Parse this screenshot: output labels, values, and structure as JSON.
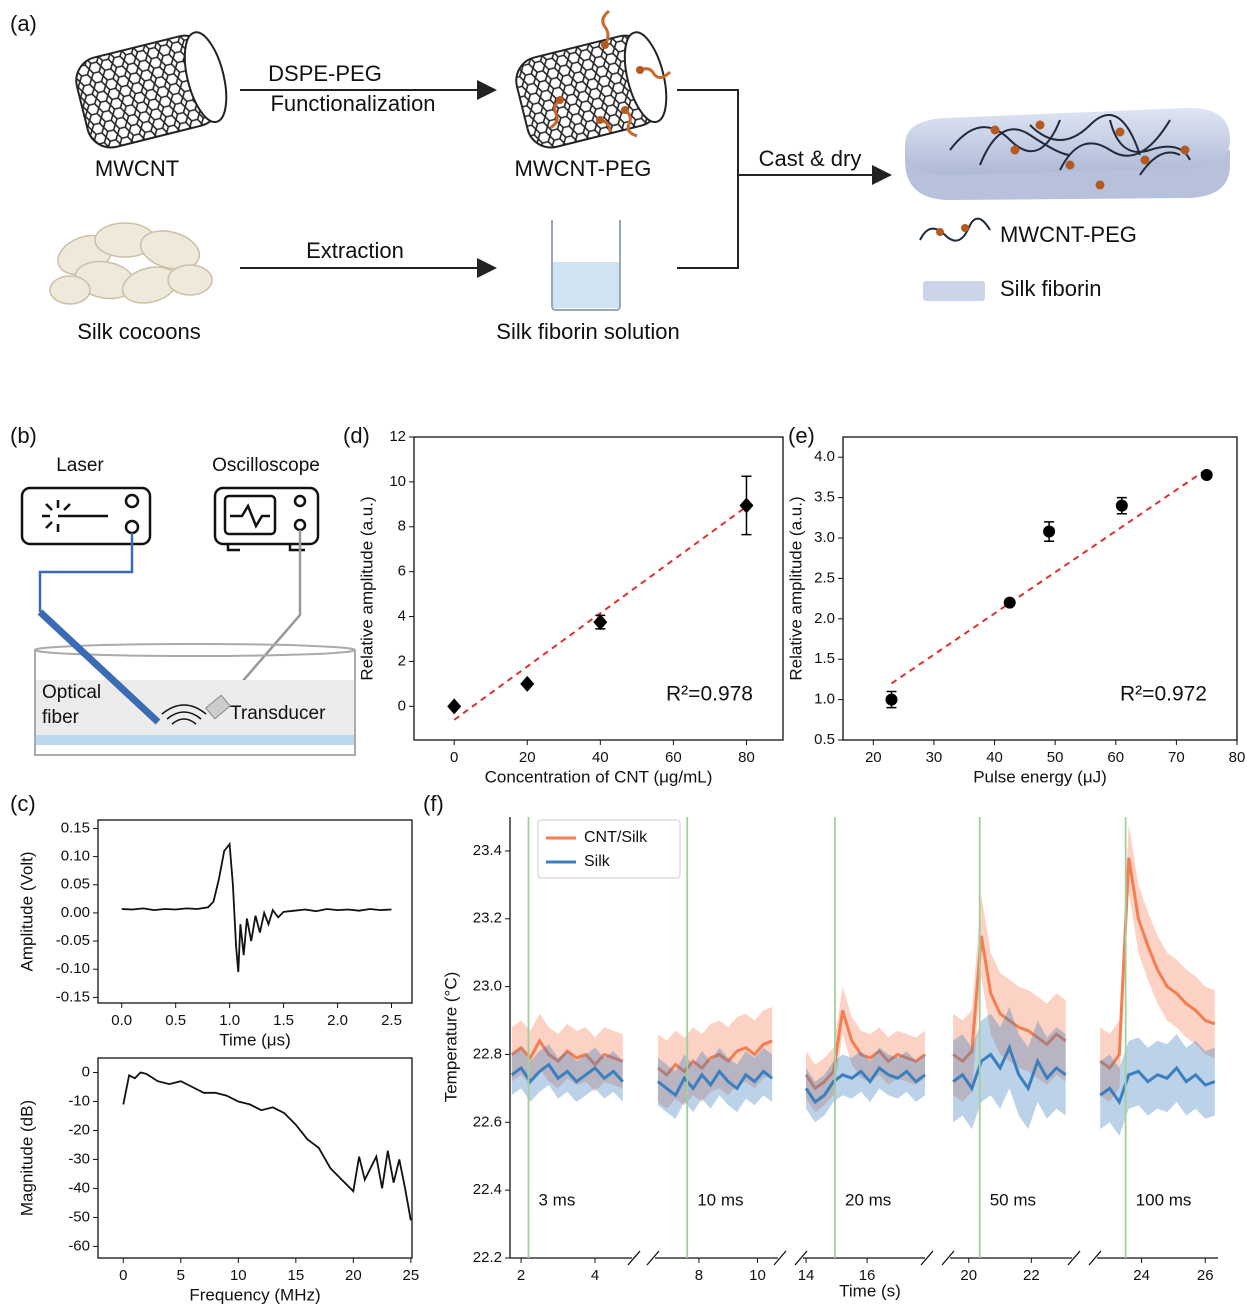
{
  "panel_labels": [
    "(a)",
    "(b)",
    "(c)",
    "(d)",
    "(e)",
    "(f)"
  ],
  "diagram_a": {
    "arrow_top": [
      "DSPE-PEG",
      "Functionalization"
    ],
    "mwcnt": "MWCNT",
    "mwcnt_peg": "MWCNT-PEG",
    "extraction": "Extraction",
    "silk_cocoons": "Silk cocoons",
    "solution": "Silk fiborin solution",
    "cast": "Cast & dry",
    "legend": [
      "MWCNT-PEG",
      "Silk fiborin"
    ]
  },
  "diagram_b": {
    "laser": "Laser",
    "oscilloscope": "Oscilloscope",
    "fiber": [
      "Optical",
      "fiber"
    ],
    "transducer": "Transducer"
  },
  "chart_data": [
    {
      "type": "line",
      "xlabel": "Time (μs)",
      "ylabel": "Amplitude (Volt)",
      "color": "#111111",
      "xlim": [
        -0.22,
        2.69
      ],
      "ylim": [
        -0.16,
        0.165
      ],
      "xticks": [
        {
          "value": 0,
          "label": "0.0"
        },
        0.5,
        {
          "value": 1,
          "label": "1.0"
        },
        1.5,
        {
          "value": 2,
          "label": "2.0"
        },
        2.5
      ],
      "yticks": [
        -0.15,
        {
          "value": -0.1,
          "label": "-0.10"
        },
        -0.05,
        {
          "value": 0,
          "label": "0.00"
        },
        0.05,
        {
          "value": 0.1,
          "label": "0.10"
        },
        0.15
      ],
      "x": [
        0,
        0.1,
        0.2,
        0.3,
        0.4,
        0.5,
        0.6,
        0.7,
        0.8,
        0.85,
        0.9,
        0.95,
        1.0,
        1.03,
        1.06,
        1.08,
        1.1,
        1.13,
        1.16,
        1.2,
        1.24,
        1.28,
        1.32,
        1.36,
        1.4,
        1.45,
        1.5,
        1.6,
        1.7,
        1.8,
        1.9,
        2.0,
        2.1,
        2.2,
        2.3,
        2.4,
        2.5
      ],
      "values": [
        0.007,
        0.006,
        0.008,
        0.005,
        0.007,
        0.006,
        0.008,
        0.007,
        0.01,
        0.02,
        0.06,
        0.11,
        0.122,
        0.05,
        -0.06,
        -0.105,
        -0.02,
        -0.075,
        -0.01,
        -0.05,
        -0.005,
        -0.035,
        0.0,
        -0.02,
        0.005,
        -0.008,
        0.002,
        0.004,
        0.006,
        0.003,
        0.007,
        0.005,
        0.006,
        0.004,
        0.007,
        0.005,
        0.006
      ]
    },
    {
      "type": "line",
      "xlabel": "Frequency (MHz)",
      "ylabel": "Magnitude (dB)",
      "color": "#111111",
      "xlim": [
        -2.2,
        25.1
      ],
      "ylim": [
        -64,
        5
      ],
      "xticks": [
        0,
        5,
        10,
        15,
        20,
        25
      ],
      "yticks": [
        -60,
        -50,
        -40,
        -30,
        -20,
        -10,
        0
      ],
      "x": [
        0,
        0.5,
        1,
        1.5,
        2,
        3,
        4,
        5,
        6,
        7,
        8,
        9,
        10,
        11,
        12,
        13,
        14,
        15,
        16,
        17,
        18,
        19,
        20,
        20.5,
        21,
        22,
        22.5,
        23,
        23.5,
        24,
        24.5,
        25
      ],
      "values": [
        -11,
        -1,
        -2,
        0,
        -0.5,
        -3,
        -4,
        -3,
        -5,
        -7,
        -7,
        -8,
        -10,
        -11,
        -13,
        -12,
        -14,
        -18,
        -23,
        -26,
        -33,
        -37,
        -41,
        -29,
        -37,
        -29,
        -40,
        -27,
        -38,
        -30,
        -40,
        -51
      ]
    },
    {
      "type": "scatter",
      "xlabel": "Concentration of CNT (μg/mL)",
      "ylabel": "Relative amplitude (a.u.)",
      "marker": "diamond",
      "color": "#000000",
      "xlim": [
        -11,
        90
      ],
      "ylim": [
        -1.5,
        12
      ],
      "xticks": [
        0,
        20,
        40,
        60,
        80
      ],
      "yticks": [
        0,
        2,
        4,
        6,
        8,
        10,
        12
      ],
      "x": [
        0,
        20,
        40,
        80
      ],
      "values": [
        0,
        1,
        3.75,
        8.95
      ],
      "errors": [
        0.05,
        0.05,
        0.3,
        1.3
      ],
      "fit": {
        "x": [
          0,
          80
        ],
        "y": [
          -0.6,
          8.9
        ],
        "color": "#e0302a"
      },
      "annotation": "R²=0.978"
    },
    {
      "type": "scatter",
      "xlabel": "Pulse energy (μJ)",
      "ylabel": "Relative amplitude (a.u.)",
      "marker": "circle",
      "color": "#000000",
      "xlim": [
        15,
        80
      ],
      "ylim": [
        0.5,
        4.25
      ],
      "xticks": [
        20,
        30,
        40,
        50,
        60,
        70,
        80
      ],
      "yticks": [
        0.5,
        {
          "value": 1,
          "label": "1.0"
        },
        1.5,
        {
          "value": 2,
          "label": "2.0"
        },
        2.5,
        {
          "value": 3,
          "label": "3.0"
        },
        3.5,
        {
          "value": 4,
          "label": "4.0"
        }
      ],
      "x": [
        23,
        42.5,
        49,
        61,
        75
      ],
      "values": [
        1.0,
        2.2,
        3.08,
        3.4,
        3.78
      ],
      "errors": [
        0.1,
        0.03,
        0.12,
        0.1,
        0.03
      ],
      "fit": {
        "x": [
          23,
          75
        ],
        "y": [
          1.2,
          3.85
        ],
        "color": "#e0302a"
      },
      "annotation": "R²=0.972"
    },
    {
      "type": "broken-line",
      "xlabel": "Time (s)",
      "ylabel": "Temperature (°C)",
      "legend": "upper left",
      "event_color": "#9fd09a",
      "ylim": [
        22.2,
        23.5
      ],
      "yticks": [
        22.2,
        22.4,
        22.6,
        22.8,
        {
          "value": 23,
          "label": "23.0"
        },
        23.2,
        23.4
      ],
      "series": [
        {
          "name": "CNT/Silk",
          "color": "#f47d52"
        },
        {
          "name": "Silk",
          "color": "#3c7fbf"
        }
      ],
      "segments": [
        {
          "xlim": [
            1.7,
            5.0
          ],
          "xticks": [
            2,
            4
          ],
          "event": 2.2,
          "event_label": "3 ms",
          "x": [
            1.75,
            2.0,
            2.25,
            2.5,
            2.75,
            3.0,
            3.25,
            3.5,
            3.75,
            4.0,
            4.25,
            4.5,
            4.75
          ],
          "series": [
            {
              "values": [
                22.8,
                22.82,
                22.79,
                22.84,
                22.8,
                22.78,
                22.81,
                22.79,
                22.8,
                22.77,
                22.8,
                22.79,
                22.78
              ],
              "spread": 0.08
            },
            {
              "values": [
                22.74,
                22.76,
                22.72,
                22.75,
                22.77,
                22.73,
                22.75,
                22.72,
                22.74,
                22.76,
                22.73,
                22.75,
                22.72
              ],
              "spread": 0.06
            }
          ]
        },
        {
          "xlim": [
            6.5,
            10.7
          ],
          "xticks": [
            8,
            10
          ],
          "event": 7.6,
          "event_label": "10 ms",
          "x": [
            6.6,
            6.9,
            7.2,
            7.5,
            7.8,
            8.1,
            8.4,
            8.7,
            9.0,
            9.3,
            9.6,
            9.9,
            10.2,
            10.5
          ],
          "series": [
            {
              "values": [
                22.76,
                22.74,
                22.77,
                22.75,
                22.78,
                22.76,
                22.79,
                22.8,
                22.78,
                22.81,
                22.82,
                22.8,
                22.83,
                22.84
              ],
              "spread": 0.1
            },
            {
              "values": [
                22.72,
                22.7,
                22.68,
                22.73,
                22.7,
                22.74,
                22.71,
                22.75,
                22.72,
                22.7,
                22.74,
                22.72,
                22.75,
                22.73
              ],
              "spread": 0.07
            }
          ]
        },
        {
          "xlim": [
            13.9,
            17.9
          ],
          "xticks": [
            14,
            16
          ],
          "event": 14.95,
          "event_label": "20 ms",
          "x": [
            14.0,
            14.3,
            14.6,
            14.9,
            15.2,
            15.5,
            15.8,
            16.1,
            16.4,
            16.7,
            17.0,
            17.3,
            17.6,
            17.9
          ],
          "series": [
            {
              "values": [
                22.74,
                22.7,
                22.72,
                22.75,
                22.93,
                22.84,
                22.8,
                22.79,
                22.81,
                22.78,
                22.8,
                22.79,
                22.78,
                22.8
              ],
              "spread": 0.07
            },
            {
              "values": [
                22.7,
                22.66,
                22.68,
                22.72,
                22.74,
                22.73,
                22.75,
                22.72,
                22.76,
                22.74,
                22.73,
                22.75,
                22.72,
                22.74
              ],
              "spread": 0.06
            }
          ]
        },
        {
          "xlim": [
            19.4,
            23.3
          ],
          "xticks": [
            20,
            22
          ],
          "event": 20.35,
          "event_label": "50 ms",
          "x": [
            19.5,
            19.8,
            20.1,
            20.4,
            20.7,
            21.0,
            21.3,
            21.6,
            21.9,
            22.2,
            22.5,
            22.8,
            23.1
          ],
          "series": [
            {
              "values": [
                22.8,
                22.78,
                22.81,
                23.15,
                22.98,
                22.92,
                22.9,
                22.88,
                22.87,
                22.85,
                22.83,
                22.86,
                22.84
              ],
              "spread": 0.12
            },
            {
              "values": [
                22.72,
                22.74,
                22.7,
                22.78,
                22.8,
                22.76,
                22.82,
                22.74,
                22.7,
                22.78,
                22.73,
                22.76,
                22.74
              ],
              "spread": 0.12
            }
          ]
        },
        {
          "xlim": [
            22.6,
            26.4
          ],
          "xticks": [
            24,
            26
          ],
          "event": 23.5,
          "event_label": "100 ms",
          "x": [
            22.7,
            23.0,
            23.3,
            23.6,
            23.9,
            24.2,
            24.5,
            24.8,
            25.1,
            25.4,
            25.7,
            26.0,
            26.3
          ],
          "series": [
            {
              "values": [
                22.78,
                22.76,
                22.8,
                23.38,
                23.2,
                23.12,
                23.05,
                23.0,
                22.98,
                22.95,
                22.93,
                22.9,
                22.89
              ],
              "spread": 0.1
            },
            {
              "values": [
                22.68,
                22.7,
                22.66,
                22.74,
                22.75,
                22.72,
                22.74,
                22.73,
                22.76,
                22.72,
                22.74,
                22.71,
                22.72
              ],
              "spread": 0.1
            }
          ]
        }
      ]
    }
  ]
}
